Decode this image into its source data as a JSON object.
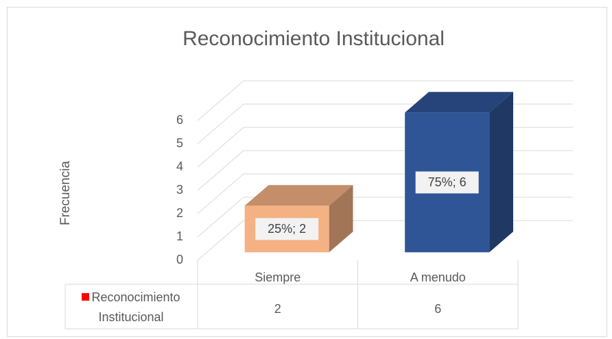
{
  "chart_data": {
    "type": "bar3d",
    "title": "Reconocimiento Institucional",
    "y_label": "Frecuencia",
    "categories": [
      "Siempre",
      "A menudo"
    ],
    "series": [
      {
        "name": "Reconocimiento Institucional",
        "color": "#ff0000",
        "bar_colors": [
          "#f4b183",
          "#2f5597"
        ],
        "values": [
          2,
          6
        ],
        "value_labels": [
          "25%; 2",
          "75%; 6"
        ]
      }
    ],
    "ylim": [
      0,
      6
    ],
    "yticks": [
      0,
      1,
      2,
      3,
      4,
      5,
      6
    ],
    "grid": true,
    "data_table": true
  }
}
